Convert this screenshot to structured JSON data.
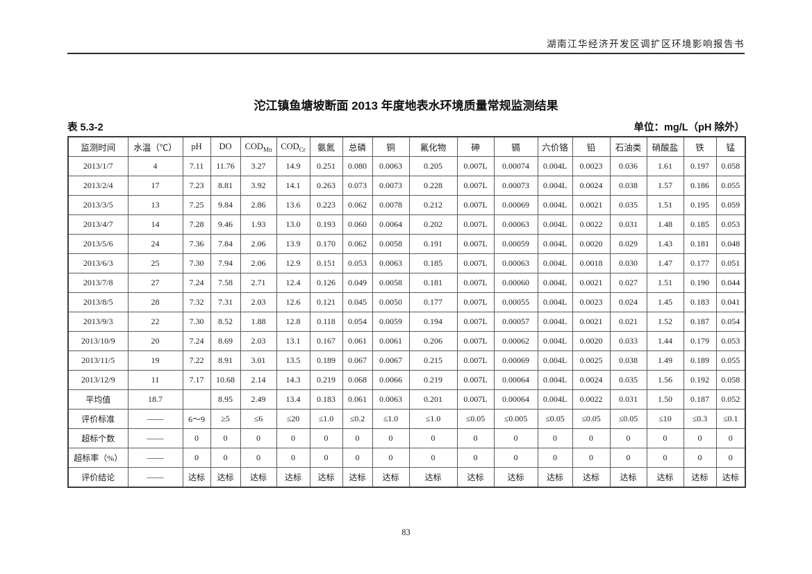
{
  "page": {
    "header_text": "湖南江华经济开发区调扩区环境影响报告书",
    "title": "沱江镇鱼塘坡断面 2013 年度地表水环境质量常规监测结果",
    "table_label": "表 5.3-2",
    "unit_label": "单位：mg/L（pH 除外）",
    "page_number": "83"
  },
  "table": {
    "columns": [
      {
        "label": "监测时间"
      },
      {
        "label": "水温（℃）"
      },
      {
        "label": "pH"
      },
      {
        "label": "DO"
      },
      {
        "label": "COD",
        "sub": "Mn"
      },
      {
        "label": "COD",
        "sub": "Cr"
      },
      {
        "label": "氨氮"
      },
      {
        "label": "总磷"
      },
      {
        "label": "铜"
      },
      {
        "label": "氟化物"
      },
      {
        "label": "砷"
      },
      {
        "label": "镉"
      },
      {
        "label": "六价铬"
      },
      {
        "label": "铅"
      },
      {
        "label": "石油类"
      },
      {
        "label": "硝酸盐"
      },
      {
        "label": "铁"
      },
      {
        "label": "锰"
      }
    ],
    "rows": [
      [
        "2013/1/7",
        "4",
        "7.11",
        "11.76",
        "3.27",
        "14.9",
        "0.251",
        "0.080",
        "0.0063",
        "0.205",
        "0.007L",
        "0.00074",
        "0.004L",
        "0.0023",
        "0.036",
        "1.61",
        "0.197",
        "0.058"
      ],
      [
        "2013/2/4",
        "17",
        "7.23",
        "8.81",
        "3.92",
        "14.1",
        "0.263",
        "0.073",
        "0.0073",
        "0.228",
        "0.007L",
        "0.00073",
        "0.004L",
        "0.0024",
        "0.038",
        "1.57",
        "0.186",
        "0.055"
      ],
      [
        "2013/3/5",
        "13",
        "7.25",
        "9.84",
        "2.86",
        "13.6",
        "0.223",
        "0.062",
        "0.0078",
        "0.212",
        "0.007L",
        "0.00069",
        "0.004L",
        "0.0021",
        "0.035",
        "1.51",
        "0.195",
        "0.059"
      ],
      [
        "2013/4/7",
        "14",
        "7.28",
        "9.46",
        "1.93",
        "13.0",
        "0.193",
        "0.060",
        "0.0064",
        "0.202",
        "0.007L",
        "0.00063",
        "0.004L",
        "0.0022",
        "0.031",
        "1.48",
        "0.185",
        "0.053"
      ],
      [
        "2013/5/6",
        "24",
        "7.36",
        "7.84",
        "2.06",
        "13.9",
        "0.170",
        "0.062",
        "0.0058",
        "0.191",
        "0.007L",
        "0.00059",
        "0.004L",
        "0.0020",
        "0.029",
        "1.43",
        "0.181",
        "0.048"
      ],
      [
        "2013/6/3",
        "25",
        "7.30",
        "7.94",
        "2.06",
        "12.9",
        "0.151",
        "0.053",
        "0.0063",
        "0.185",
        "0.007L",
        "0.00063",
        "0.004L",
        "0.0018",
        "0.030",
        "1.47",
        "0.177",
        "0.051"
      ],
      [
        "2013/7/8",
        "27",
        "7.24",
        "7.58",
        "2.71",
        "12.4",
        "0.126",
        "0.049",
        "0.0058",
        "0.181",
        "0.007L",
        "0.00060",
        "0.004L",
        "0.0021",
        "0.027",
        "1.51",
        "0.190",
        "0.044"
      ],
      [
        "2013/8/5",
        "28",
        "7.32",
        "7.31",
        "2.03",
        "12.6",
        "0.121",
        "0.045",
        "0.0050",
        "0.177",
        "0.007L",
        "0.00055",
        "0.004L",
        "0.0023",
        "0.024",
        "1.45",
        "0.183",
        "0.041"
      ],
      [
        "2013/9/3",
        "22",
        "7.30",
        "8.52",
        "1.88",
        "12.8",
        "0.118",
        "0.054",
        "0.0059",
        "0.194",
        "0.007L",
        "0.00057",
        "0.004L",
        "0.0021",
        "0.021",
        "1.52",
        "0.187",
        "0.054"
      ],
      [
        "2013/10/9",
        "20",
        "7.24",
        "8.69",
        "2.03",
        "13.1",
        "0.167",
        "0.061",
        "0.0061",
        "0.206",
        "0.007L",
        "0.00062",
        "0.004L",
        "0.0020",
        "0.033",
        "1.44",
        "0.179",
        "0.053"
      ],
      [
        "2013/11/5",
        "19",
        "7.22",
        "8.91",
        "3.01",
        "13.5",
        "0.189",
        "0.067",
        "0.0067",
        "0.215",
        "0.007L",
        "0.00069",
        "0.004L",
        "0.0025",
        "0.038",
        "1.49",
        "0.189",
        "0.055"
      ],
      [
        "2013/12/9",
        "11",
        "7.17",
        "10.68",
        "2.14",
        "14.3",
        "0.219",
        "0.068",
        "0.0066",
        "0.219",
        "0.007L",
        "0.00064",
        "0.004L",
        "0.0024",
        "0.035",
        "1.56",
        "0.192",
        "0.058"
      ],
      [
        "平均值",
        "18.7",
        "",
        "8.95",
        "2.49",
        "13.4",
        "0.183",
        "0.061",
        "0.0063",
        "0.201",
        "0.007L",
        "0.00064",
        "0.004L",
        "0.0022",
        "0.031",
        "1.50",
        "0.187",
        "0.052"
      ],
      [
        "评价标准",
        "——",
        "6～9",
        "≥5",
        "≤6",
        "≤20",
        "≤1.0",
        "≤0.2",
        "≤1.0",
        "≤1.0",
        "≤0.05",
        "≤0.005",
        "≤0.05",
        "≤0.05",
        "≤0.05",
        "≤10",
        "≤0.3",
        "≤0.1"
      ],
      [
        "超标个数",
        "——",
        "0",
        "0",
        "0",
        "0",
        "0",
        "0",
        "0",
        "0",
        "0",
        "0",
        "0",
        "0",
        "0",
        "0",
        "0",
        "0"
      ],
      [
        "超标率（%）",
        "——",
        "0",
        "0",
        "0",
        "0",
        "0",
        "0",
        "0",
        "0",
        "0",
        "0",
        "0",
        "0",
        "0",
        "0",
        "0",
        "0"
      ],
      [
        "评价结论",
        "——",
        "达标",
        "达标",
        "达标",
        "达标",
        "达标",
        "达标",
        "达标",
        "达标",
        "达标",
        "达标",
        "达标",
        "达标",
        "达标",
        "达标",
        "达标",
        "达标"
      ]
    ]
  }
}
